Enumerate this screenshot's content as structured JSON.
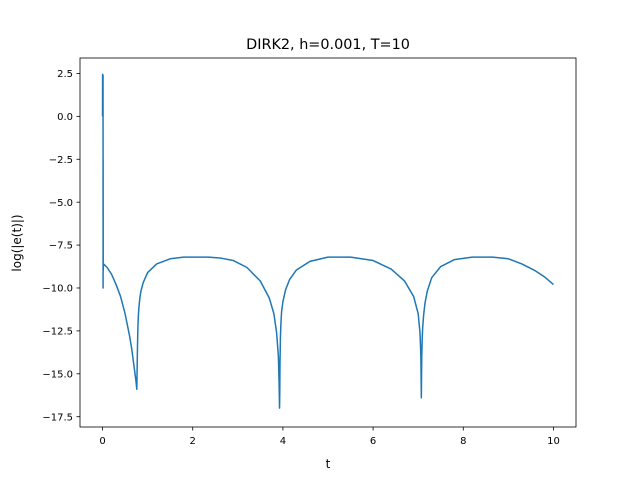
{
  "chart_data": {
    "type": "line",
    "title": "DIRK2, h=0.001, T=10",
    "xlabel": "t",
    "ylabel": "log(|e(t)|)",
    "xlim": [
      -0.5,
      10.5
    ],
    "ylim": [
      -18.1,
      3.4
    ],
    "x_ticks": [
      0,
      2,
      4,
      6,
      8,
      10
    ],
    "x_tick_labels": [
      "0",
      "2",
      "4",
      "6",
      "8",
      "10"
    ],
    "y_ticks": [
      2.5,
      0.0,
      -2.5,
      -5.0,
      -7.5,
      -10.0,
      -12.5,
      -15.0,
      -17.5
    ],
    "y_tick_labels": [
      "2.5",
      "0.0",
      "−2.5",
      "−5.0",
      "−7.5",
      "−10.0",
      "−12.5",
      "−15.0",
      "−17.5"
    ],
    "grid": false,
    "legend": "none",
    "line_color": "#1f77b4",
    "series": [
      {
        "x": [
          0,
          0.001,
          0.002,
          0.003,
          0.004,
          0.005,
          0.006,
          0.007,
          0.008,
          0.009,
          0.01,
          0.011,
          0.012,
          0.013,
          0.015,
          0.017,
          0.02,
          0.1,
          0.2,
          0.3,
          0.4,
          0.5,
          0.6,
          0.65,
          0.7,
          0.74,
          0.76,
          0.775,
          0.785,
          0.79,
          0.795,
          0.805,
          0.815,
          0.83,
          0.85,
          0.9,
          1.0,
          1.2,
          1.5,
          1.8,
          2.1,
          2.35,
          2.6,
          2.9,
          3.2,
          3.5,
          3.7,
          3.8,
          3.86,
          3.9,
          3.915,
          3.925,
          3.93,
          3.935,
          3.945,
          3.955,
          3.97,
          4.0,
          4.06,
          4.15,
          4.3,
          4.6,
          5.0,
          5.5,
          6.0,
          6.4,
          6.7,
          6.9,
          7.0,
          7.04,
          7.06,
          7.07,
          7.075,
          7.08,
          7.09,
          7.1,
          7.12,
          7.15,
          7.2,
          7.3,
          7.5,
          7.8,
          8.2,
          8.65,
          9.0,
          9.3,
          9.6,
          9.8,
          10.0
        ],
        "y": [
          0.0,
          2.45,
          0.3,
          2.2,
          0.5,
          1.9,
          0.2,
          2.3,
          0.4,
          1.6,
          0.6,
          2.4,
          -10.0,
          -2.5,
          -9.0,
          -8.6,
          -8.6,
          -8.8,
          -9.2,
          -9.8,
          -10.5,
          -11.5,
          -12.8,
          -13.6,
          -14.6,
          -15.4,
          -15.9,
          -13.4,
          -12.2,
          -11.9,
          -11.6,
          -11.2,
          -10.9,
          -10.55,
          -10.2,
          -9.7,
          -9.1,
          -8.6,
          -8.3,
          -8.2,
          -8.2,
          -8.2,
          -8.25,
          -8.4,
          -8.8,
          -9.6,
          -10.6,
          -11.5,
          -12.6,
          -14.0,
          -15.5,
          -17.0,
          -16.2,
          -14.4,
          -12.9,
          -12.1,
          -11.4,
          -10.8,
          -10.1,
          -9.5,
          -8.95,
          -8.45,
          -8.2,
          -8.2,
          -8.4,
          -8.9,
          -9.6,
          -10.5,
          -11.5,
          -12.6,
          -14.0,
          -16.4,
          -15.0,
          -13.9,
          -12.9,
          -12.3,
          -11.6,
          -10.9,
          -10.2,
          -9.4,
          -8.75,
          -8.35,
          -8.2,
          -8.2,
          -8.3,
          -8.6,
          -9.0,
          -9.35,
          -9.8
        ]
      }
    ]
  }
}
